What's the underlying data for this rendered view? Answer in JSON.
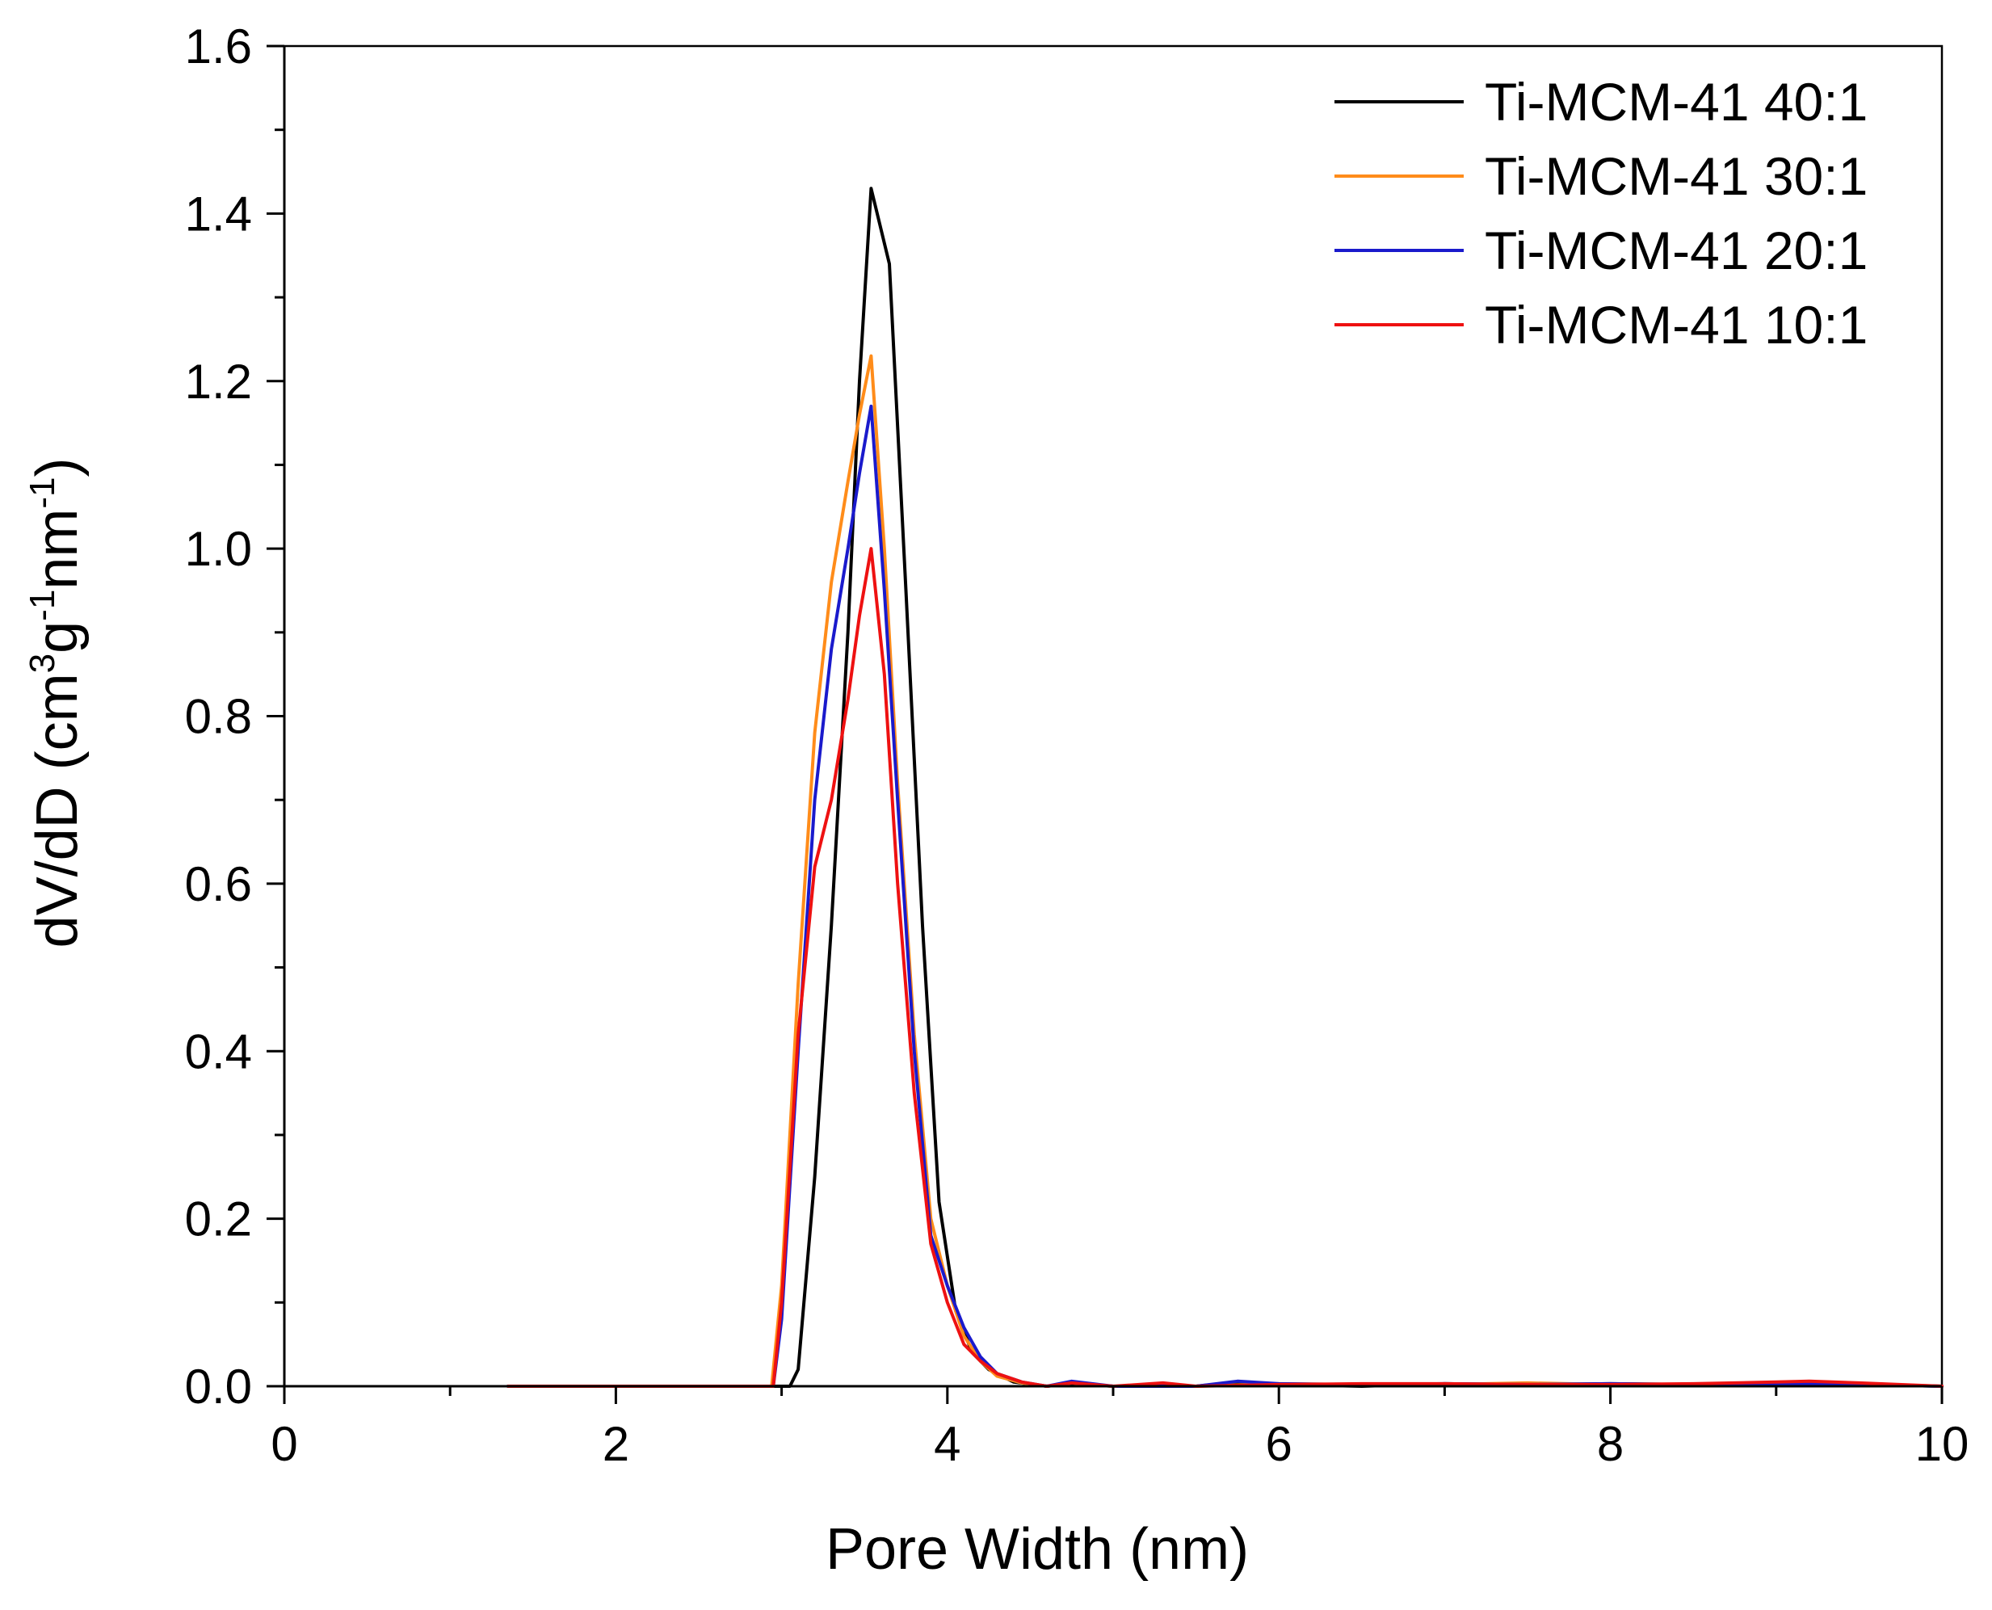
{
  "chart_data": {
    "type": "line",
    "title": "",
    "xlabel": "Pore Width (nm)",
    "ylabel": {
      "parts": [
        {
          "text": "dV/dD (cm",
          "sup": false
        },
        {
          "text": "3",
          "sup": true
        },
        {
          "text": "g",
          "sup": false
        },
        {
          "text": "-1",
          "sup": true
        },
        {
          "text": "nm",
          "sup": false
        },
        {
          "text": "-1",
          "sup": true
        },
        {
          "text": ")",
          "sup": false
        }
      ]
    },
    "xlim": [
      0,
      10
    ],
    "ylim": [
      0,
      1.6
    ],
    "x_ticks": [
      0,
      2,
      4,
      6,
      8,
      10
    ],
    "x_tick_labels": [
      "0",
      "2",
      "4",
      "6",
      "8",
      "10"
    ],
    "x_minor_ticks": [
      1,
      3,
      5,
      7,
      9
    ],
    "y_ticks": [
      0,
      0.2,
      0.4,
      0.6,
      0.8,
      1.0,
      1.2,
      1.4,
      1.6
    ],
    "y_tick_labels": [
      "0.0",
      "0.2",
      "0.4",
      "0.6",
      "0.8",
      "1.0",
      "1.2",
      "1.4",
      "1.6"
    ],
    "y_minor_ticks": [
      0.1,
      0.3,
      0.5,
      0.7,
      0.9,
      1.1,
      1.3,
      1.5
    ],
    "grid": false,
    "legend_position": "top-right",
    "series": [
      {
        "name": "Ti-MCM-41 40:1",
        "color": "#000000",
        "x": [
          1.35,
          2.0,
          2.5,
          2.95,
          3.05,
          3.1,
          3.2,
          3.3,
          3.4,
          3.47,
          3.54,
          3.65,
          3.75,
          3.85,
          3.95,
          4.05,
          4.15,
          4.25,
          4.4,
          4.6,
          4.75,
          5.0,
          5.5,
          5.75,
          6.0,
          6.5,
          7.0,
          7.5,
          8.0,
          8.5,
          9.0,
          9.5,
          10.0
        ],
        "y": [
          0.0,
          0.0,
          0.0,
          0.0,
          0.0,
          0.02,
          0.25,
          0.55,
          0.9,
          1.2,
          1.43,
          1.34,
          0.95,
          0.55,
          0.22,
          0.09,
          0.04,
          0.02,
          0.005,
          0.0,
          0.003,
          0.0,
          0.0,
          0.005,
          0.002,
          0.0,
          0.003,
          0.002,
          0.003,
          0.002,
          0.003,
          0.002,
          0.0
        ]
      },
      {
        "name": "Ti-MCM-41 30:1",
        "color": "#ff8c1a",
        "x": [
          1.35,
          2.0,
          2.5,
          2.94,
          3.0,
          3.1,
          3.2,
          3.3,
          3.4,
          3.47,
          3.54,
          3.62,
          3.7,
          3.8,
          3.9,
          4.0,
          4.1,
          4.2,
          4.3,
          4.45,
          4.6,
          4.75,
          5.0,
          5.5,
          6.0,
          6.5,
          7.0,
          7.5,
          8.0,
          8.5,
          9.0,
          9.5,
          10.0
        ],
        "y": [
          0.0,
          0.0,
          0.0,
          0.0,
          0.12,
          0.48,
          0.78,
          0.96,
          1.08,
          1.16,
          1.23,
          1.0,
          0.72,
          0.42,
          0.2,
          0.12,
          0.06,
          0.03,
          0.012,
          0.004,
          0.0,
          0.004,
          0.0,
          0.0,
          0.003,
          0.002,
          0.002,
          0.004,
          0.002,
          0.002,
          0.004,
          0.003,
          0.0
        ]
      },
      {
        "name": "Ti-MCM-41 20:1",
        "color": "#1a1acc",
        "x": [
          1.35,
          2.0,
          2.5,
          2.95,
          3.0,
          3.1,
          3.2,
          3.3,
          3.4,
          3.47,
          3.54,
          3.62,
          3.7,
          3.8,
          3.9,
          4.0,
          4.1,
          4.2,
          4.3,
          4.45,
          4.6,
          4.75,
          5.0,
          5.5,
          5.75,
          6.0,
          6.5,
          7.0,
          7.5,
          8.0,
          8.5,
          9.0,
          9.5,
          10.0
        ],
        "y": [
          0.0,
          0.0,
          0.0,
          0.0,
          0.08,
          0.4,
          0.7,
          0.88,
          1.0,
          1.09,
          1.17,
          0.95,
          0.7,
          0.4,
          0.18,
          0.12,
          0.07,
          0.035,
          0.015,
          0.005,
          0.0,
          0.006,
          0.0,
          0.0,
          0.006,
          0.003,
          0.002,
          0.003,
          0.002,
          0.003,
          0.002,
          0.003,
          0.002,
          0.0
        ]
      },
      {
        "name": "Ti-MCM-41 10:1",
        "color": "#ee1111",
        "x": [
          1.35,
          2.0,
          2.5,
          2.95,
          3.0,
          3.1,
          3.2,
          3.3,
          3.4,
          3.47,
          3.54,
          3.62,
          3.7,
          3.8,
          3.9,
          4.0,
          4.1,
          4.2,
          4.3,
          4.45,
          4.6,
          4.75,
          5.0,
          5.3,
          5.5,
          6.0,
          6.5,
          7.0,
          7.5,
          8.0,
          8.5,
          9.0,
          9.2,
          9.5,
          10.0
        ],
        "y": [
          0.0,
          0.0,
          0.0,
          0.0,
          0.1,
          0.42,
          0.62,
          0.7,
          0.82,
          0.92,
          1.0,
          0.85,
          0.6,
          0.35,
          0.17,
          0.1,
          0.05,
          0.03,
          0.015,
          0.005,
          0.0,
          0.004,
          0.0,
          0.004,
          0.0,
          0.002,
          0.003,
          0.003,
          0.002,
          0.002,
          0.003,
          0.005,
          0.006,
          0.004,
          0.0
        ]
      }
    ]
  }
}
